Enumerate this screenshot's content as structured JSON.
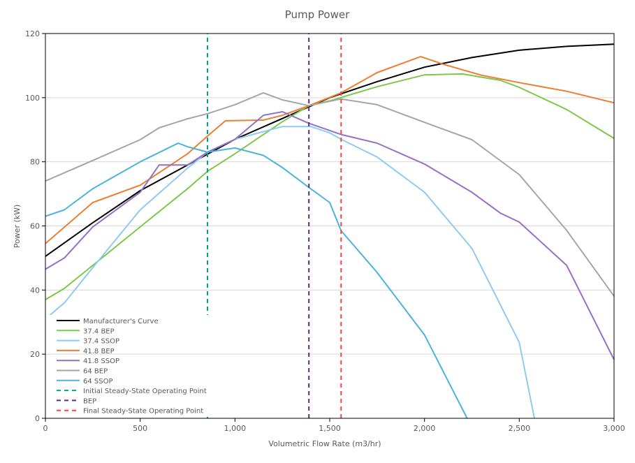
{
  "chart_data": {
    "type": "line",
    "title": "Pump Power",
    "xlabel": "Volumetric Flow Rate (m3/hr)",
    "ylabel": "Power (kW)",
    "xlim": [
      0,
      3000
    ],
    "ylim": [
      0,
      120
    ],
    "xticks": [
      0,
      500,
      1000,
      1500,
      2000,
      2500,
      3000
    ],
    "xtick_labels": [
      "0",
      "500",
      "1,000",
      "1,500",
      "2,000",
      "2,500",
      "3,000"
    ],
    "yticks": [
      0,
      20,
      40,
      60,
      80,
      100,
      120
    ],
    "ytick_labels": [
      "0",
      "20",
      "40",
      "60",
      "80",
      "100",
      "120"
    ],
    "grid": "horizontal",
    "legend_position": "bottom-left",
    "series": [
      {
        "name": "Manufacturer's Curve",
        "color": "#000000",
        "dash": false,
        "x": [
          0,
          250,
          500,
          750,
          1000,
          1250,
          1500,
          1750,
          2000,
          2250,
          2500,
          2750,
          3000
        ],
        "y": [
          50.5,
          61,
          71,
          79,
          87,
          93.5,
          100,
          105,
          109.5,
          112.5,
          114.8,
          116,
          116.7
        ]
      },
      {
        "name": "37.4 BEP",
        "color": "#7DC846",
        "dash": false,
        "x": [
          0,
          100,
          250,
          500,
          750,
          855,
          1000,
          1250,
          1390,
          1500,
          1750,
          2000,
          2200,
          2400,
          2500,
          2750,
          3000
        ],
        "y": [
          37,
          40.5,
          47.7,
          59.7,
          71.6,
          77,
          82.5,
          92.5,
          97.5,
          99,
          103.4,
          107.1,
          107.4,
          105.4,
          103.2,
          96.3,
          87.3
        ]
      },
      {
        "name": "37.4 SSOP",
        "color": "#8DCBF2",
        "dash": false,
        "x": [
          20,
          100,
          250,
          500,
          750,
          855,
          1000,
          1250,
          1400,
          1500,
          1560,
          1750,
          2000,
          2250,
          2500,
          2580
        ],
        "y": [
          32,
          36,
          47,
          65,
          78,
          83,
          87,
          91,
          91,
          89,
          87,
          81.5,
          70.5,
          53,
          23.7,
          0
        ]
      },
      {
        "name": "41.8 BEP",
        "color": "#ED7D31",
        "dash": false,
        "x": [
          0,
          250,
          500,
          750,
          855,
          950,
          1150,
          1250,
          1390,
          1560,
          1750,
          1980,
          2100,
          2300,
          2500,
          2750,
          3000
        ],
        "y": [
          54.5,
          67.3,
          72.7,
          82.5,
          88,
          92.8,
          93,
          94.5,
          97.5,
          101.5,
          107.8,
          112.8,
          110.4,
          107,
          104.7,
          102,
          98.4
        ]
      },
      {
        "name": "41.8 SSOP",
        "color": "#9370C8",
        "dash": false,
        "x": [
          0,
          100,
          250,
          500,
          600,
          750,
          855,
          1000,
          1150,
          1250,
          1390,
          1560,
          1750,
          2000,
          2250,
          2400,
          2500,
          2750,
          3000
        ],
        "y": [
          46.5,
          50,
          59.7,
          70.5,
          79,
          79,
          83,
          87,
          94.5,
          95.6,
          92,
          88.5,
          85.8,
          79.3,
          70.5,
          64,
          61.2,
          47.7,
          18.3
        ]
      },
      {
        "name": "64 BEP",
        "color": "#A5A5A5",
        "dash": false,
        "x": [
          0,
          250,
          500,
          600,
          750,
          855,
          1000,
          1150,
          1250,
          1390,
          1560,
          1750,
          2000,
          2250,
          2500,
          2750,
          3000
        ],
        "y": [
          74,
          80.4,
          86.9,
          90.6,
          93.4,
          95,
          97.8,
          101.5,
          99.3,
          97.5,
          99.6,
          97.8,
          92.3,
          86.9,
          76,
          58.6,
          38.1
        ]
      },
      {
        "name": "64 SSOP",
        "color": "#4BB4DC",
        "dash": false,
        "x": [
          0,
          100,
          250,
          500,
          700,
          750,
          855,
          1000,
          1150,
          1250,
          1390,
          1500,
          1560,
          1750,
          2000,
          2225
        ],
        "y": [
          63,
          65,
          71.6,
          80,
          85.8,
          84.7,
          83,
          84.3,
          82,
          78.2,
          72,
          67.3,
          58.5,
          45.5,
          26,
          0
        ]
      },
      {
        "name": "Initial Steady-State Operating Point",
        "color": "#00A67E",
        "dash": true,
        "x": [
          855,
          855
        ],
        "y": [
          0,
          120
        ]
      },
      {
        "name": "BEP",
        "color": "#5B2A86",
        "dash": true,
        "x": [
          1390,
          1390
        ],
        "y": [
          0,
          120
        ]
      },
      {
        "name": "Final Steady-State Operating Point",
        "color": "#FF4040",
        "dash": true,
        "x": [
          1560,
          1560
        ],
        "y": [
          0,
          120
        ]
      }
    ]
  }
}
